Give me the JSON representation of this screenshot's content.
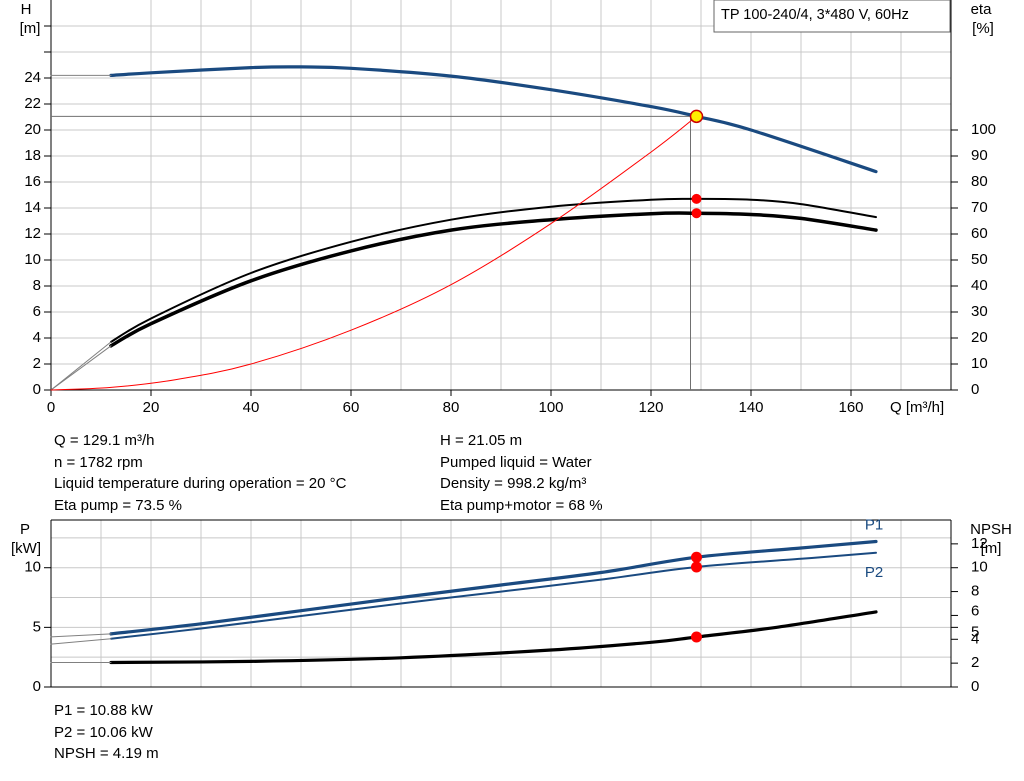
{
  "colors": {
    "head_curve": "#1a4a80",
    "power_curves": "#1a4a80",
    "efficiency_curves": "#000000",
    "npsh_curve": "#000000",
    "system_curve": "#ff0000",
    "duty_point_fill": "#ffee00",
    "duty_point_stroke": "#cc0000",
    "marker": "#ff0000",
    "grid": "#c8c8c8",
    "axis": "#000000"
  },
  "chart_data": [
    {
      "id": "performance",
      "type": "line",
      "title_box": "TP 100-240/4, 3*480 V, 60Hz",
      "x_axis": {
        "label": "Q [m³/h]",
        "range": [
          0,
          180
        ],
        "ticks": [
          0,
          20,
          40,
          60,
          80,
          100,
          120,
          140,
          160
        ]
      },
      "y_left": {
        "label_top": "H",
        "label_unit": "[m]",
        "range": [
          0,
          30
        ],
        "ticks": [
          0,
          2,
          4,
          6,
          8,
          10,
          12,
          14,
          16,
          18,
          20,
          22,
          24
        ]
      },
      "y_right": {
        "label_top": "eta",
        "label_unit": "[%]",
        "range": [
          0,
          150
        ],
        "ticks": [
          0,
          10,
          20,
          30,
          40,
          50,
          60,
          70,
          80,
          90,
          100
        ]
      },
      "grid": true,
      "series": [
        {
          "axis": "left",
          "style": "head",
          "points": [
            [
              12,
              24.2
            ],
            [
              20,
              24.4
            ],
            [
              40,
              24.8
            ],
            [
              50,
              24.85
            ],
            [
              60,
              24.75
            ],
            [
              80,
              24.15
            ],
            [
              100,
              23.1
            ],
            [
              120,
              21.8
            ],
            [
              129.1,
              21.05
            ],
            [
              140,
              20.0
            ],
            [
              165,
              16.8
            ]
          ]
        },
        {
          "axis": "left",
          "style": "head-ext",
          "points": [
            [
              0,
              24.2
            ],
            [
              12,
              24.2
            ]
          ]
        },
        {
          "axis": "right",
          "style": "eta-pump",
          "points": [
            [
              12,
              18.5
            ],
            [
              20,
              27.5
            ],
            [
              40,
              45
            ],
            [
              60,
              57
            ],
            [
              80,
              65.5
            ],
            [
              100,
              70.5
            ],
            [
              120,
              73.2
            ],
            [
              129.1,
              73.5
            ],
            [
              140,
              73.2
            ],
            [
              150,
              71.5
            ],
            [
              165,
              66.5
            ]
          ]
        },
        {
          "axis": "right",
          "style": "eta-total",
          "points": [
            [
              12,
              17
            ],
            [
              20,
              25.5
            ],
            [
              40,
              42
            ],
            [
              60,
              53.5
            ],
            [
              80,
              61.5
            ],
            [
              100,
              65.5
            ],
            [
              120,
              67.8
            ],
            [
              129.1,
              68
            ],
            [
              140,
              67.5
            ],
            [
              150,
              66
            ],
            [
              165,
              61.5
            ]
          ]
        },
        {
          "axis": "right",
          "style": "eta-ext",
          "points": [
            [
              0,
              0
            ],
            [
              12,
              18.5
            ]
          ]
        },
        {
          "axis": "right",
          "style": "eta-ext",
          "points": [
            [
              0,
              0
            ],
            [
              12,
              17
            ]
          ]
        },
        {
          "axis": "left",
          "style": "system",
          "points": [
            [
              0,
              0
            ],
            [
              12,
              0.2
            ],
            [
              25,
              0.8
            ],
            [
              40,
              2.0
            ],
            [
              60,
              4.6
            ],
            [
              80,
              8.1
            ],
            [
              100,
              12.8
            ],
            [
              120,
              18.3
            ],
            [
              129.1,
              21.05
            ]
          ]
        }
      ],
      "duty_point": {
        "x": 129.1,
        "y": 21.05
      },
      "markers": [
        {
          "axis": "right",
          "x": 129.1,
          "y": 73.5
        },
        {
          "axis": "right",
          "x": 129.1,
          "y": 68
        }
      ]
    },
    {
      "id": "power-npsh",
      "type": "line",
      "x_axis": {
        "range": [
          0,
          180
        ]
      },
      "y_left": {
        "label_top": "P",
        "label_unit": "[kW]",
        "range": [
          0,
          14
        ],
        "ticks": [
          0,
          5,
          10
        ]
      },
      "y_right": {
        "label_top": "NPSH",
        "label_unit": "[m]",
        "range": [
          0,
          14
        ],
        "ticks": [
          0,
          2,
          4,
          5,
          6,
          8,
          10,
          12
        ],
        "tick_labels": [
          "0",
          "2",
          "4",
          "5",
          "6",
          "8",
          "10",
          "12"
        ]
      },
      "grid": true,
      "series": [
        {
          "name": "P1",
          "axis": "left",
          "style": "p1",
          "points": [
            [
              12,
              4.45
            ],
            [
              30,
              5.3
            ],
            [
              50,
              6.4
            ],
            [
              70,
              7.5
            ],
            [
              90,
              8.55
            ],
            [
              110,
              9.6
            ],
            [
              129.1,
              10.88
            ],
            [
              150,
              11.65
            ],
            [
              165,
              12.2
            ]
          ]
        },
        {
          "name": "P2",
          "axis": "left",
          "style": "p2",
          "points": [
            [
              12,
              4.05
            ],
            [
              30,
              4.9
            ],
            [
              50,
              5.95
            ],
            [
              70,
              7.0
            ],
            [
              90,
              8.0
            ],
            [
              110,
              9.0
            ],
            [
              129.1,
              10.06
            ],
            [
              150,
              10.75
            ],
            [
              165,
              11.25
            ]
          ]
        },
        {
          "axis": "left",
          "style": "p-ext",
          "points": [
            [
              0,
              4.2
            ],
            [
              12,
              4.45
            ]
          ]
        },
        {
          "axis": "left",
          "style": "p-ext",
          "points": [
            [
              0,
              3.6
            ],
            [
              12,
              4.05
            ]
          ]
        },
        {
          "axis": "right",
          "style": "npsh",
          "points": [
            [
              12,
              2.05
            ],
            [
              40,
              2.15
            ],
            [
              70,
              2.45
            ],
            [
              100,
              3.1
            ],
            [
              120,
              3.75
            ],
            [
              129.1,
              4.19
            ],
            [
              145,
              5.0
            ],
            [
              165,
              6.3
            ]
          ]
        },
        {
          "axis": "right",
          "style": "npsh-ext",
          "points": [
            [
              0,
              2.05
            ],
            [
              12,
              2.05
            ]
          ]
        }
      ],
      "markers": [
        {
          "axis": "left",
          "x": 129.1,
          "y": 10.88
        },
        {
          "axis": "left",
          "x": 129.1,
          "y": 10.06
        },
        {
          "axis": "right",
          "x": 129.1,
          "y": 4.19
        }
      ]
    }
  ],
  "info_left": [
    "Q = 129.1 m³/h",
    "n = 1782 rpm",
    "Liquid temperature during operation = 20 °C",
    "Eta pump = 73.5 %"
  ],
  "info_right": [
    "H = 21.05 m",
    "Pumped liquid = Water",
    "Density = 998.2 kg/m³",
    "Eta pump+motor = 68 %"
  ],
  "info_bottom": [
    "P1 = 10.88 kW",
    "P2 = 10.06 kW",
    "NPSH = 4.19 m"
  ]
}
